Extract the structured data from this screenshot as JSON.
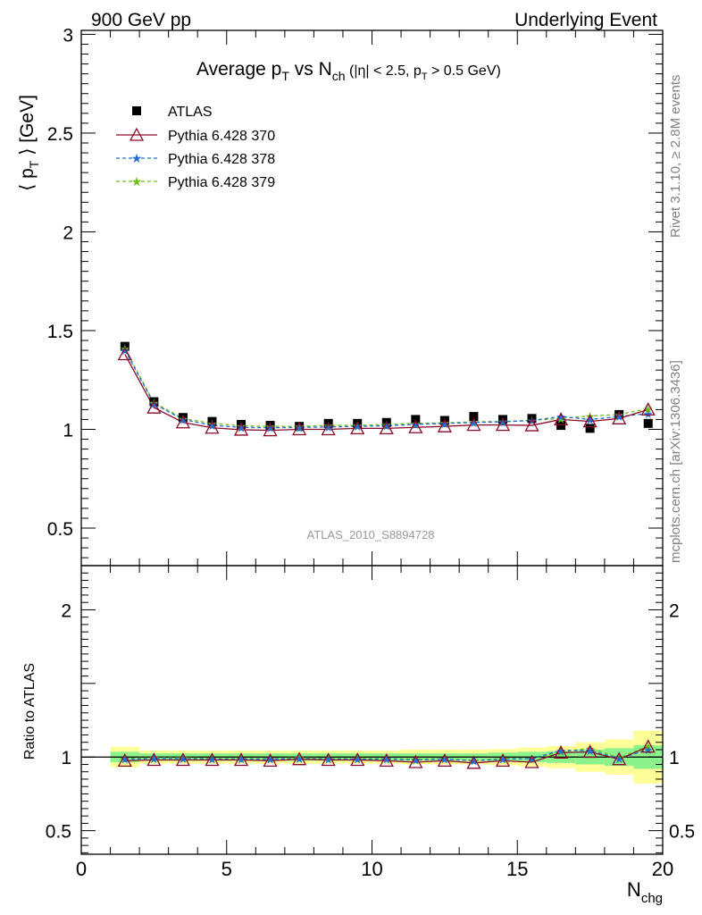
{
  "header": {
    "left": "900 GeV pp",
    "right": "Underlying Event"
  },
  "title": {
    "main": "Average p",
    "sub1": "T",
    "vs": " vs N",
    "sub2": "ch",
    "cuts_a": " (|η| < 2.5, p",
    "cuts_sub": "T",
    "cuts_b": " > 0.5 GeV)"
  },
  "side_labels": {
    "rivet": "Rivet 3.1.10, ≥ 2.8M events",
    "mcplots": "mcplots.cern.ch [arXiv:1306.3436]"
  },
  "analysis_label": "ATLAS_2010_S8894728",
  "colors": {
    "atlas": "#000000",
    "p370": "#8b0a28",
    "p378": "#1f6fd6",
    "p379": "#6cc01c",
    "band_inner": "#8cf28c",
    "band_outer": "#ffff99"
  },
  "chart_data": [
    {
      "type": "scatter",
      "panel": "main",
      "ylabel": {
        "a": "⟨ p",
        "sub": "T",
        "b": " ⟩ [GeV]"
      },
      "xlim": [
        0,
        20
      ],
      "ylim": [
        0.31,
        3.02
      ],
      "yticks": [
        0.5,
        1,
        1.5,
        2,
        2.5,
        3
      ],
      "ytick_labels": [
        "0.5",
        "1",
        "1.5",
        "2",
        "2.5",
        "3"
      ],
      "legend_position": "top-left",
      "x": [
        1.5,
        2.5,
        3.5,
        4.5,
        5.5,
        6.5,
        7.5,
        8.5,
        9.5,
        10.5,
        11.5,
        12.5,
        13.5,
        14.5,
        15.5,
        16.5,
        17.5,
        18.5,
        19.5
      ],
      "series": [
        {
          "name": "ATLAS",
          "style": "square",
          "values": [
            1.42,
            1.14,
            1.06,
            1.04,
            1.025,
            1.02,
            1.015,
            1.03,
            1.03,
            1.035,
            1.05,
            1.045,
            1.065,
            1.05,
            1.055,
            1.02,
            1.005,
            1.075,
            1.03
          ]
        },
        {
          "name": "Pythia 6.428 370",
          "style": "line-triangle",
          "values": [
            1.38,
            1.11,
            1.035,
            1.008,
            0.998,
            0.995,
            1.0,
            1.0,
            1.005,
            1.005,
            1.01,
            1.015,
            1.022,
            1.022,
            1.02,
            1.05,
            1.04,
            1.055,
            1.1
          ]
        },
        {
          "name": "Pythia 6.428 378",
          "style": "dashed-star",
          "values": [
            1.4,
            1.13,
            1.05,
            1.02,
            1.01,
            1.008,
            1.01,
            1.012,
            1.015,
            1.018,
            1.025,
            1.03,
            1.035,
            1.038,
            1.045,
            1.065,
            1.05,
            1.065,
            1.08
          ]
        },
        {
          "name": "Pythia 6.428 379",
          "style": "dashed-star",
          "values": [
            1.41,
            1.135,
            1.055,
            1.03,
            1.018,
            1.015,
            1.015,
            1.02,
            1.02,
            1.025,
            1.03,
            1.033,
            1.038,
            1.04,
            1.045,
            1.055,
            1.068,
            1.075,
            1.105
          ]
        }
      ]
    },
    {
      "type": "line",
      "panel": "ratio",
      "ylabel": "Ratio to ATLAS",
      "xlabel": {
        "a": "N",
        "sub": "chg"
      },
      "xlim": [
        0,
        20
      ],
      "xticks": [
        0,
        5,
        10,
        15,
        20
      ],
      "xtick_labels": [
        "0",
        "5",
        "10",
        "15",
        "20"
      ],
      "ylim": [
        0.34,
        2.3
      ],
      "yticks": [
        0.5,
        1,
        2
      ],
      "ytick_labels": [
        "0.5",
        "1",
        "2"
      ],
      "x": [
        1.5,
        2.5,
        3.5,
        4.5,
        5.5,
        6.5,
        7.5,
        8.5,
        9.5,
        10.5,
        11.5,
        12.5,
        13.5,
        14.5,
        15.5,
        16.5,
        17.5,
        18.5,
        19.5
      ],
      "band_inner": [
        0.035,
        0.025,
        0.025,
        0.025,
        0.025,
        0.025,
        0.025,
        0.025,
        0.025,
        0.025,
        0.025,
        0.025,
        0.025,
        0.03,
        0.035,
        0.04,
        0.05,
        0.06,
        0.08
      ],
      "band_outer": [
        0.07,
        0.045,
        0.045,
        0.045,
        0.045,
        0.045,
        0.045,
        0.045,
        0.045,
        0.045,
        0.05,
        0.05,
        0.05,
        0.055,
        0.065,
        0.075,
        0.1,
        0.12,
        0.18
      ],
      "series": [
        {
          "name": "Pythia 6.428 370",
          "values": [
            0.975,
            0.98,
            0.98,
            0.98,
            0.98,
            0.975,
            0.985,
            0.98,
            0.98,
            0.975,
            0.965,
            0.975,
            0.96,
            0.975,
            0.965,
            1.03,
            1.035,
            0.985,
            1.07
          ]
        },
        {
          "name": "Pythia 6.428 378",
          "values": [
            0.985,
            0.99,
            0.99,
            0.985,
            0.985,
            0.985,
            0.99,
            0.985,
            0.985,
            0.985,
            0.98,
            0.985,
            0.975,
            0.985,
            0.99,
            1.045,
            1.045,
            0.99,
            1.05
          ]
        },
        {
          "name": "Pythia 6.428 379",
          "values": [
            0.99,
            0.995,
            0.995,
            0.99,
            0.99,
            0.99,
            0.995,
            0.99,
            0.99,
            0.99,
            0.985,
            0.99,
            0.975,
            0.99,
            0.99,
            1.035,
            1.06,
            0.995,
            1.075
          ]
        }
      ]
    }
  ]
}
